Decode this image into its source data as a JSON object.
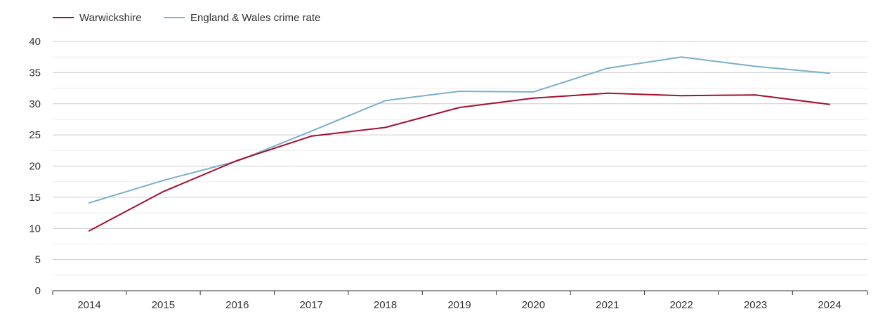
{
  "chart_data": {
    "type": "line",
    "title": "",
    "xlabel": "",
    "ylabel": "",
    "x": [
      "2014",
      "2015",
      "2016",
      "2017",
      "2018",
      "2019",
      "2020",
      "2021",
      "2022",
      "2023",
      "2024"
    ],
    "ylim": [
      0,
      40
    ],
    "y_ticks": [
      0,
      5,
      10,
      15,
      20,
      25,
      30,
      35,
      40
    ],
    "grid": true,
    "legend_position": "top-left",
    "series": [
      {
        "name": "Warwickshire",
        "color": "#a50f2d",
        "values": [
          9.6,
          15.9,
          20.9,
          24.8,
          26.2,
          29.4,
          30.9,
          31.7,
          31.3,
          31.4,
          29.9
        ]
      },
      {
        "name": "England & Wales crime rate",
        "color": "#7aafcb",
        "values": [
          14.1,
          17.7,
          20.8,
          25.6,
          30.5,
          32.0,
          31.9,
          35.7,
          37.5,
          36.0,
          34.9
        ]
      }
    ]
  }
}
